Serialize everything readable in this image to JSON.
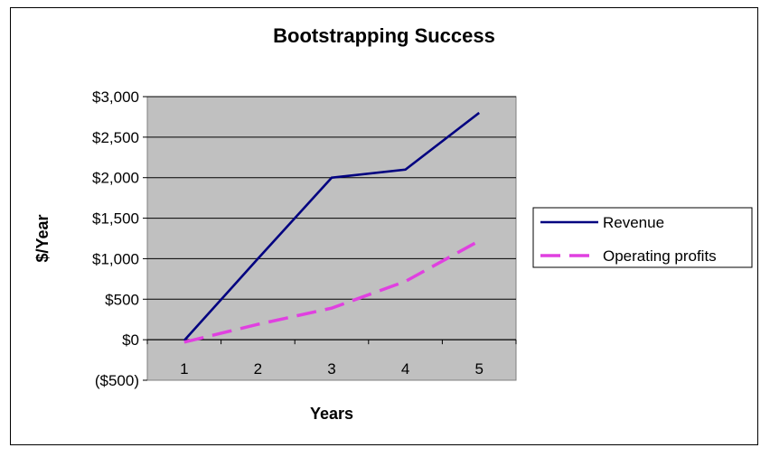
{
  "chart_data": {
    "type": "line",
    "title": "Bootstrapping Success",
    "xlabel": "Years",
    "ylabel": "$/Year",
    "categories": [
      "1",
      "2",
      "3",
      "4",
      "5"
    ],
    "ylim": [
      -500,
      3000
    ],
    "yticks": [
      -500,
      0,
      500,
      1000,
      1500,
      2000,
      2500,
      3000
    ],
    "ytick_labels": [
      "($500)",
      "$0",
      "$500",
      "$1,000",
      "$1,500",
      "$2,000",
      "$2,500",
      "$3,000"
    ],
    "series": [
      {
        "name": "Revenue",
        "values": [
          -10,
          1000,
          2000,
          2100,
          2800
        ],
        "color": "#000080",
        "style": "solid"
      },
      {
        "name": "Operating profits",
        "values": [
          -30,
          190,
          390,
          720,
          1220
        ],
        "color": "#e040e0",
        "style": "dashed"
      }
    ],
    "grid": true,
    "plot_background": "#c0c0c0",
    "negative_tick_color": "#e03020",
    "legend": "right"
  }
}
